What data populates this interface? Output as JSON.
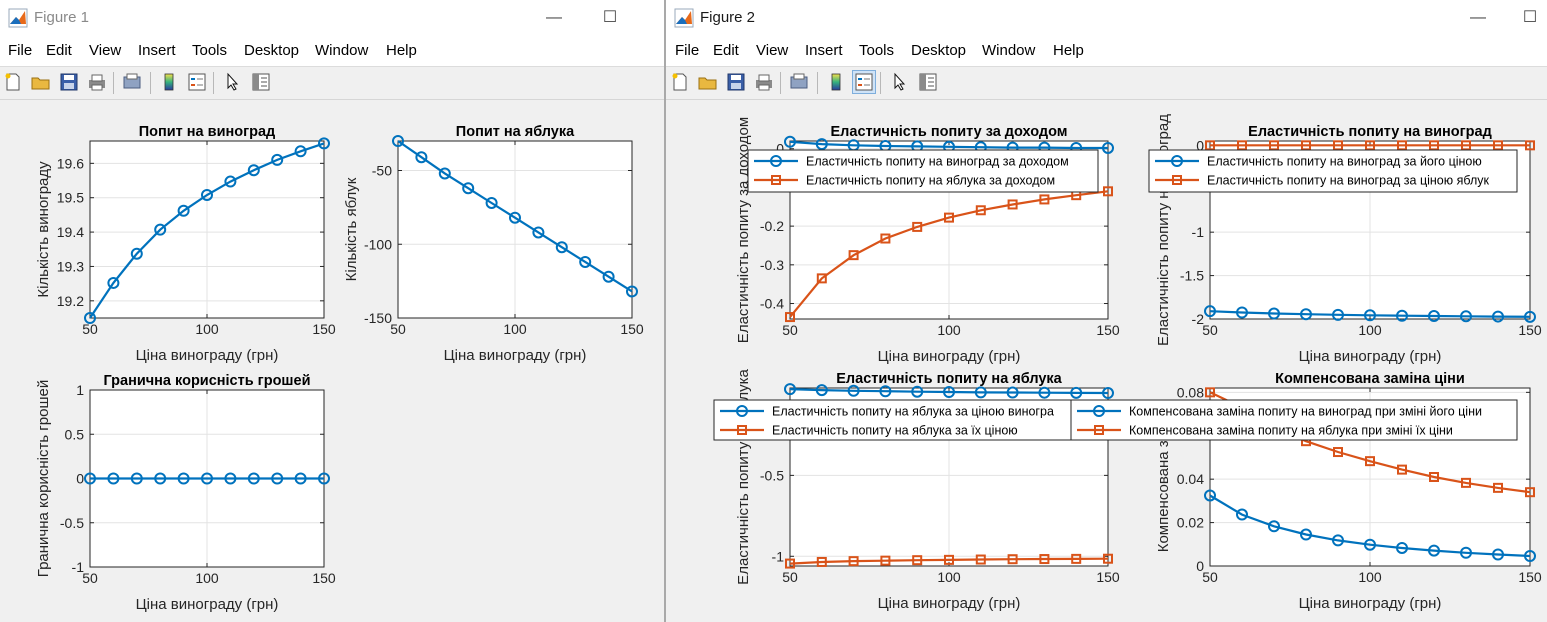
{
  "colors": {
    "blue": "#0072BD",
    "orange": "#D95319",
    "grid": "#e3e3e3",
    "axis": "#262626"
  },
  "menu": [
    "File",
    "Edit",
    "View",
    "Insert",
    "Tools",
    "Desktop",
    "Window",
    "Help"
  ],
  "toolbar_icons": [
    "new-figure-icon",
    "open-file-icon",
    "save-icon",
    "print-icon",
    "print-preview-icon",
    "colorbar-icon",
    "legend-icon",
    "edit-plot-icon",
    "property-inspector-icon"
  ],
  "window_controls": {
    "minimize": "—",
    "maximize": "☐"
  },
  "fig1": {
    "title": "Figure 1",
    "chart_data": [
      {
        "type": "line",
        "title": "Попит на виноград",
        "xlabel": "Ціна винограду (грн)",
        "ylabel": "Кількість винограду",
        "xlim": [
          50,
          150
        ],
        "ylim": [
          19.15,
          19.665
        ],
        "xticks": [
          50,
          100,
          150
        ],
        "yticks": [
          19.2,
          19.3,
          19.4,
          19.5,
          19.6
        ],
        "ytick_labels": [
          "19.2",
          "19.3",
          "19.4",
          "19.5",
          "19.6"
        ],
        "grid": true,
        "series": [
          {
            "color": "blue",
            "marker": "circle",
            "x": [
              50,
              60,
              70,
              80,
              90,
              100,
              110,
              120,
              130,
              140,
              150
            ],
            "y": [
              19.15,
              19.252,
              19.337,
              19.407,
              19.462,
              19.508,
              19.547,
              19.58,
              19.61,
              19.635,
              19.658
            ]
          }
        ]
      },
      {
        "type": "line",
        "title": "Попит на яблука",
        "xlabel": "Ціна винограду (грн)",
        "ylabel": "Кількість яблук",
        "xlim": [
          50,
          150
        ],
        "ylim": [
          -150,
          -30
        ],
        "xticks": [
          50,
          100,
          150
        ],
        "yticks": [
          -150,
          -100,
          -50
        ],
        "ytick_labels": [
          "-150",
          "-100",
          "-50"
        ],
        "grid": true,
        "series": [
          {
            "color": "blue",
            "marker": "circle",
            "x": [
              50,
              60,
              70,
              80,
              90,
              100,
              110,
              120,
              130,
              140,
              150
            ],
            "y": [
              -30,
              -41,
              -52,
              -62,
              -72,
              -82,
              -92,
              -102,
              -112,
              -122,
              -132
            ]
          }
        ]
      },
      {
        "type": "line",
        "title": "Гранична корисність грошей",
        "xlabel": "Ціна винограду (грн)",
        "ylabel": "Гранична корисність грошей",
        "xlim": [
          50,
          150
        ],
        "ylim": [
          -1,
          1
        ],
        "xticks": [
          50,
          100,
          150
        ],
        "yticks": [
          -1,
          -0.5,
          0,
          0.5,
          1
        ],
        "ytick_labels": [
          "-1",
          "-0.5",
          "0",
          "0.5",
          "1"
        ],
        "grid": true,
        "series": [
          {
            "color": "blue",
            "marker": "circle",
            "x": [
              50,
              60,
              70,
              80,
              90,
              100,
              110,
              120,
              130,
              140,
              150
            ],
            "y": [
              0,
              0,
              0,
              0,
              0,
              0,
              0,
              0,
              0,
              0,
              0
            ]
          }
        ]
      }
    ]
  },
  "fig2": {
    "title": "Figure 2",
    "chart_data": [
      {
        "type": "line",
        "title": "Еластичність попиту за доходом",
        "xlabel": "Ціна винограду (грн)",
        "ylabel": "Еластичність попиту за доходом",
        "xlim": [
          50,
          150
        ],
        "ylim": [
          -0.44,
          0.02
        ],
        "xticks": [
          50,
          100,
          150
        ],
        "yticks": [
          -0.4,
          -0.3,
          -0.2,
          0
        ],
        "ytick_labels": [
          "-0.4",
          "-0.3",
          "-0.2",
          "0"
        ],
        "grid": true,
        "legend": [
          "Еластичність попиту на виноград за доходом",
          "Еластичність попиту на яблука за доходом"
        ],
        "series": [
          {
            "name": "Еластичність попиту на виноград за доходом",
            "color": "blue",
            "marker": "circle",
            "x": [
              50,
              60,
              70,
              80,
              90,
              100,
              110,
              120,
              130,
              140,
              150
            ],
            "y": [
              0.018,
              0.012,
              0.009,
              0.007,
              0.006,
              0.005,
              0.004,
              0.003,
              0.003,
              0.002,
              0.002
            ]
          },
          {
            "name": "Еластичність попиту на яблука за доходом",
            "color": "orange",
            "marker": "square",
            "x": [
              50,
              60,
              70,
              80,
              90,
              100,
              110,
              120,
              130,
              140,
              150
            ],
            "y": [
              -0.435,
              -0.335,
              -0.275,
              -0.232,
              -0.202,
              -0.178,
              -0.159,
              -0.144,
              -0.131,
              -0.12,
              -0.11
            ]
          }
        ]
      },
      {
        "type": "line",
        "title": "Еластичність попиту на виноград",
        "xlabel": "Ціна винограду (грн)",
        "ylabel": "Еластичність попиту на виноград",
        "xlim": [
          50,
          150
        ],
        "ylim": [
          -2,
          0.05
        ],
        "xticks": [
          50,
          100,
          150
        ],
        "yticks": [
          -2,
          -1.5,
          -1,
          0
        ],
        "ytick_labels": [
          "-2",
          "-1.5",
          "-1",
          "0"
        ],
        "grid": true,
        "legend": [
          "Еластичність попиту на виноград за його ціною",
          "Еластичність попиту на виноград за ціною яблук"
        ],
        "series": [
          {
            "name": "Еластичність попиту на виноград за його ціною",
            "color": "blue",
            "marker": "circle",
            "x": [
              50,
              60,
              70,
              80,
              90,
              100,
              110,
              120,
              130,
              140,
              150
            ],
            "y": [
              -1.91,
              -1.925,
              -1.937,
              -1.945,
              -1.952,
              -1.957,
              -1.962,
              -1.966,
              -1.969,
              -1.972,
              -1.975
            ]
          },
          {
            "name": "Еластичність попиту на виноград за ціною яблук",
            "color": "orange",
            "marker": "square",
            "x": [
              50,
              60,
              70,
              80,
              90,
              100,
              110,
              120,
              130,
              140,
              150
            ],
            "y": [
              0,
              0,
              0,
              0,
              0,
              0,
              0,
              0,
              0,
              0,
              0
            ]
          }
        ]
      },
      {
        "type": "line",
        "title": "Еластичність попиту на яблука",
        "xlabel": "Ціна винограду (грн)",
        "ylabel": "Еластичність попиту на яблука",
        "xlim": [
          50,
          150
        ],
        "ylim": [
          -1.06,
          0.04
        ],
        "xticks": [
          50,
          100,
          150
        ],
        "yticks": [
          -1,
          -0.5
        ],
        "ytick_labels": [
          "-1",
          "-0.5"
        ],
        "grid": true,
        "legend": [
          "Еластичність попиту на яблука за ціною виногра",
          "Еластичність попиту на яблука за їх ціною"
        ],
        "series": [
          {
            "name": "Еластичність попиту на яблука за ціною виногра",
            "color": "blue",
            "marker": "circle",
            "x": [
              50,
              60,
              70,
              80,
              90,
              100,
              110,
              120,
              130,
              140,
              150
            ],
            "y": [
              0.033,
              0.027,
              0.023,
              0.02,
              0.017,
              0.015,
              0.013,
              0.012,
              0.011,
              0.01,
              0.009
            ]
          },
          {
            "name": "Еластичність попиту на яблука за їх ціною",
            "color": "orange",
            "marker": "square",
            "x": [
              50,
              60,
              70,
              80,
              90,
              100,
              110,
              120,
              130,
              140,
              150
            ],
            "y": [
              -1.045,
              -1.035,
              -1.03,
              -1.027,
              -1.024,
              -1.022,
              -1.02,
              -1.018,
              -1.017,
              -1.016,
              -1.015
            ]
          }
        ]
      },
      {
        "type": "line",
        "title": "Компенсована заміна ціни",
        "xlabel": "Ціна винограду (грн)",
        "ylabel": "Компенсована заміна",
        "xlim": [
          50,
          150
        ],
        "ylim": [
          0,
          0.082
        ],
        "xticks": [
          50,
          100,
          150
        ],
        "yticks": [
          0,
          0.02,
          0.04,
          0.08
        ],
        "ytick_labels": [
          "0",
          "0.02",
          "0.04",
          "0.08"
        ],
        "grid": true,
        "legend": [
          "Компенсована заміна попиту на виноград при зміні його ціни",
          "Компенсована заміна попиту на яблука при зміні їх ціни"
        ],
        "series": [
          {
            "name": "Компенсована заміна попиту на виноград при зміні його ціни",
            "color": "blue",
            "marker": "circle",
            "x": [
              50,
              60,
              70,
              80,
              90,
              100,
              110,
              120,
              130,
              140,
              150
            ],
            "y": [
              0.0325,
              0.0237,
              0.0183,
              0.0145,
              0.0118,
              0.0098,
              0.0083,
              0.0071,
              0.0061,
              0.0053,
              0.0046
            ]
          },
          {
            "name": "Компенсована заміна попиту на яблука при зміні їх ціни",
            "color": "orange",
            "marker": "square",
            "x": [
              50,
              60,
              70,
              80,
              90,
              100,
              110,
              120,
              130,
              140,
              150
            ],
            "y": [
              0.08,
              0.073,
              0.064,
              0.0575,
              0.0525,
              0.0483,
              0.0444,
              0.041,
              0.0383,
              0.036,
              0.034
            ]
          }
        ]
      }
    ]
  }
}
